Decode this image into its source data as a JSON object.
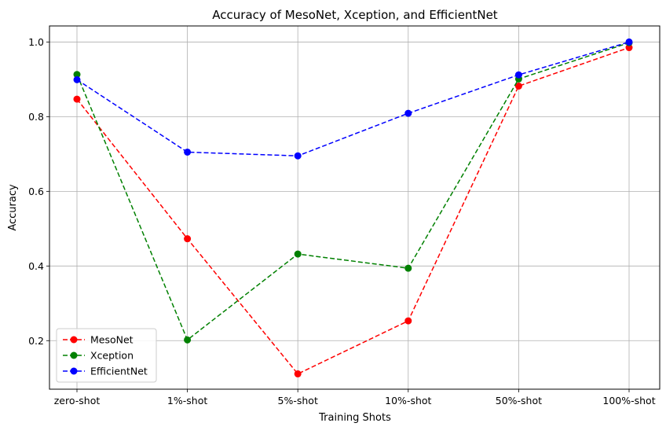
{
  "chart_data": {
    "type": "line",
    "title": "Accuracy of MesoNet, Xception, and EfficientNet",
    "xlabel": "Training Shots",
    "ylabel": "Accuracy",
    "categories": [
      "zero-shot",
      "1%-shot",
      "5%-shot",
      "10%-shot",
      "50%-shot",
      "100%-shot"
    ],
    "yticks": [
      "0.2",
      "0.4",
      "0.6",
      "0.8",
      "1.0"
    ],
    "ytick_values": [
      0.2,
      0.4,
      0.6,
      0.8,
      1.0
    ],
    "ylim": [
      0.07,
      1.043
    ],
    "grid": true,
    "line_style": "dashed",
    "marker": "circle",
    "legend_position": "lower-left",
    "series": [
      {
        "name": "MesoNet",
        "color": "#ff0000",
        "values": [
          0.847,
          0.473,
          0.111,
          0.253,
          0.882,
          0.985
        ]
      },
      {
        "name": "Xception",
        "color": "#008000",
        "values": [
          0.913,
          0.202,
          0.432,
          0.394,
          0.901,
          0.998
        ]
      },
      {
        "name": "EfficientNet",
        "color": "#0000ff",
        "values": [
          0.899,
          0.705,
          0.695,
          0.809,
          0.912,
          1.0
        ]
      }
    ]
  }
}
